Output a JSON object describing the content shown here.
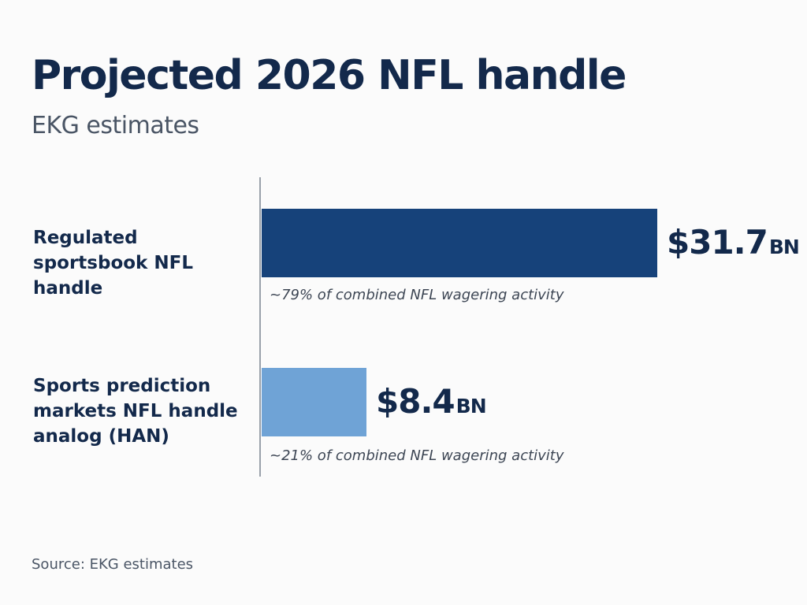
{
  "chart_data": {
    "type": "bar",
    "orientation": "horizontal",
    "title": "Projected 2026 NFL handle",
    "subtitle": "EKG estimates",
    "categories": [
      "Regulated sportsbook NFL handle",
      "Sports prediction markets NFL handle analog (HAN)"
    ],
    "values": [
      31.7,
      8.4
    ],
    "value_labels": [
      {
        "number": "$31.7",
        "unit": "BN"
      },
      {
        "number": "$8.4",
        "unit": "BN"
      }
    ],
    "annotations": [
      "~79% of combined NFL wagering activity",
      "~21% of combined NFL wagering activity"
    ],
    "colors": [
      "#16427a",
      "#6fa3d6"
    ],
    "xlim": [
      0,
      31.7
    ],
    "grid": false,
    "source": "Source: EKG estimates"
  }
}
